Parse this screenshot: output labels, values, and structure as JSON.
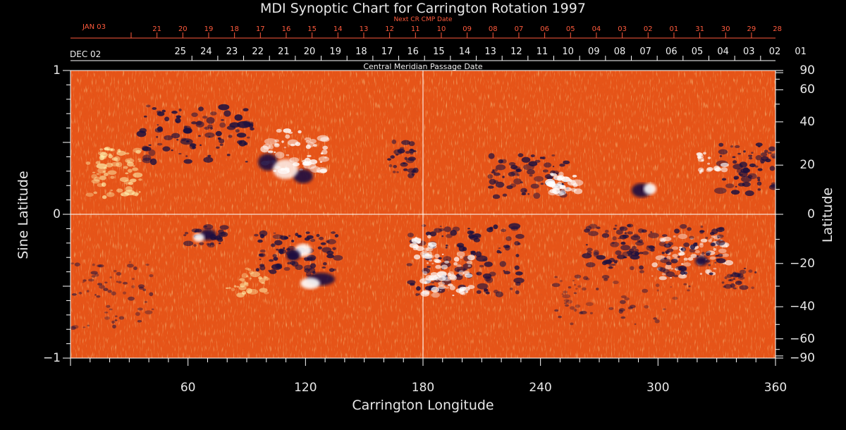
{
  "title": "MDI Synoptic Chart for Carrington Rotation 1997",
  "top_axis": {
    "label": "Next CR CMP Date",
    "start_label": "JAN 03",
    "dates": [
      "21",
      "20",
      "19",
      "18",
      "17",
      "16",
      "15",
      "14",
      "13",
      "12",
      "11",
      "10",
      "09",
      "08",
      "07",
      "06",
      "05",
      "04",
      "03",
      "02",
      "01",
      "31",
      "30",
      "29",
      "28"
    ]
  },
  "bottom_date_axis": {
    "label": "Central Meridian Passage Date",
    "start_label": "DEC 02",
    "dates": [
      "25",
      "24",
      "23",
      "22",
      "21",
      "20",
      "19",
      "18",
      "17",
      "16",
      "15",
      "14",
      "13",
      "12",
      "11",
      "10",
      "09",
      "08",
      "07",
      "06",
      "05",
      "04",
      "03",
      "02",
      "01"
    ]
  },
  "x_axis": {
    "label": "Carrington Longitude",
    "range": [
      0,
      360
    ],
    "ticks": [
      "60",
      "120",
      "180",
      "240",
      "300",
      "360"
    ]
  },
  "y_axis_left": {
    "label": "Sine Latitude",
    "range": [
      -1,
      1
    ],
    "ticks": [
      "1",
      "0",
      "−1"
    ]
  },
  "y_axis_right": {
    "label": "Latitude",
    "ticks": [
      "90",
      "60",
      "40",
      "20",
      "0",
      "−20",
      "−40",
      "−60",
      "−90"
    ]
  },
  "colors": {
    "background": "#000000",
    "map_base": "#e85a1a",
    "positive_polarity": "#ffffff",
    "negative_polarity": "#1a1040",
    "date_text": "#ff5a3c",
    "axis_text": "#e8e8e8"
  }
}
